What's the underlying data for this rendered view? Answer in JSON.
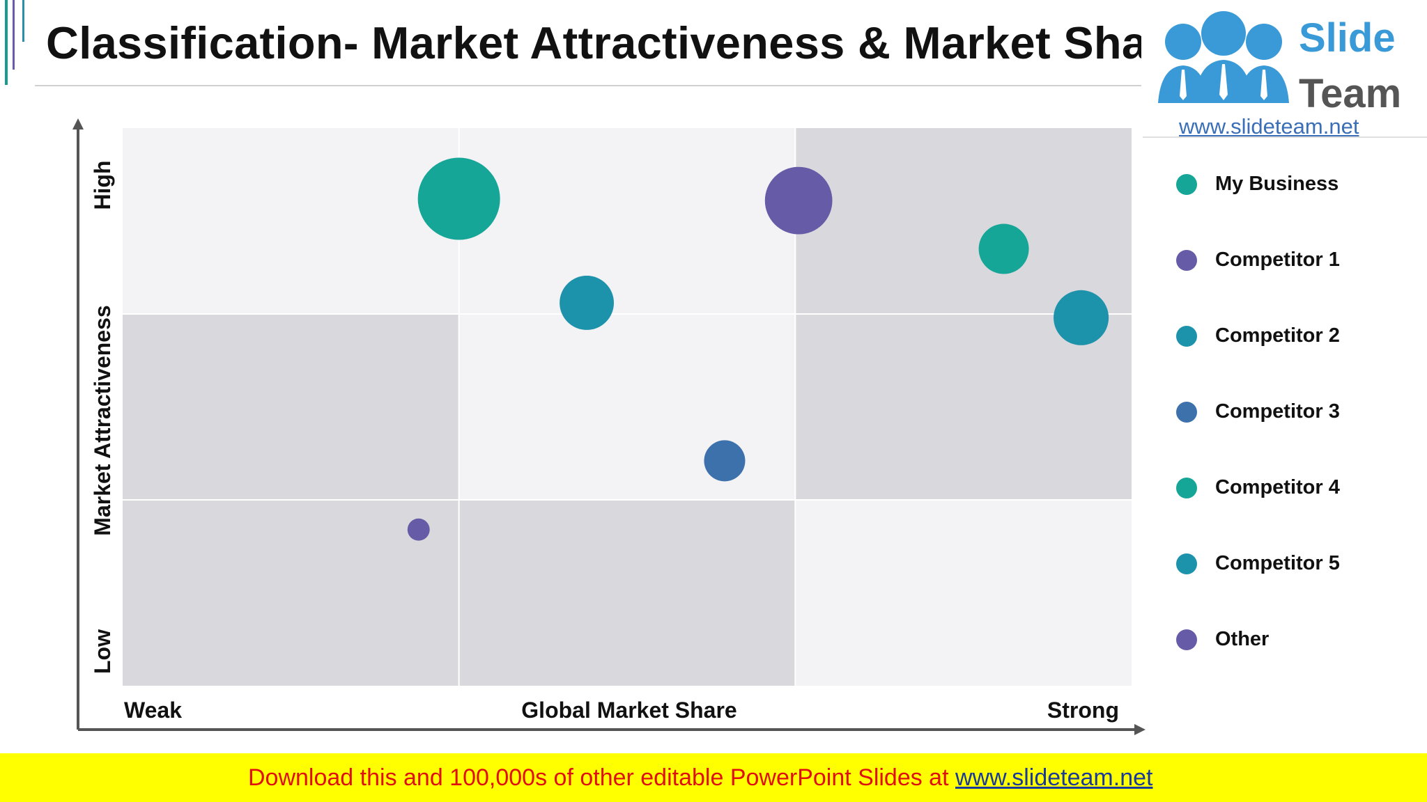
{
  "header": {
    "title": "Classification- Market Attractiveness & Market Share"
  },
  "logo": {
    "word_1": "Slide",
    "word_2": "Team",
    "url": "www.slideteam.net"
  },
  "chart_data": {
    "type": "scatter",
    "title": "",
    "xlabel": "Global Market Share",
    "ylabel": "Market Attractiveness",
    "x_tick_labels": [
      "Weak",
      "Strong"
    ],
    "y_tick_labels": [
      "Low",
      "High"
    ],
    "xlim": [
      0,
      3
    ],
    "ylim": [
      0,
      3
    ],
    "grid": "3x3 matrix",
    "legend_position": "right",
    "cell_colors": {
      "light": "#f3f2f5",
      "dark": "#d9d8dc"
    },
    "shaded_cells": [
      [
        0,
        0
      ],
      [
        1,
        0
      ],
      [
        0,
        1
      ],
      [
        2,
        1
      ],
      [
        2,
        2
      ]
    ],
    "series": [
      {
        "name": "My Business",
        "color": "#15a697",
        "x": 1.0,
        "y": 2.62,
        "size": 1.0
      },
      {
        "name": "Competitor 1",
        "color": "#665ba6",
        "x": 2.01,
        "y": 2.61,
        "size": 0.82
      },
      {
        "name": "Competitor 2",
        "color": "#1d92ab",
        "x": 1.38,
        "y": 2.06,
        "size": 0.66
      },
      {
        "name": "Competitor 3",
        "color": "#3c71ac",
        "x": 1.79,
        "y": 1.21,
        "size": 0.5
      },
      {
        "name": "Competitor 4",
        "color": "#15a697",
        "x": 2.62,
        "y": 2.35,
        "size": 0.61
      },
      {
        "name": "Competitor 5",
        "color": "#1d92ab",
        "x": 2.85,
        "y": 1.98,
        "size": 0.67
      },
      {
        "name": "Other",
        "color": "#665ba6",
        "x": 0.88,
        "y": 0.84,
        "size": 0.27
      }
    ]
  },
  "banner": {
    "text": "Download this and 100,000s of other editable PowerPoint Slides at ",
    "link": "www.slideteam.net",
    "background": "#ffff00",
    "text_color": "#e01010"
  }
}
